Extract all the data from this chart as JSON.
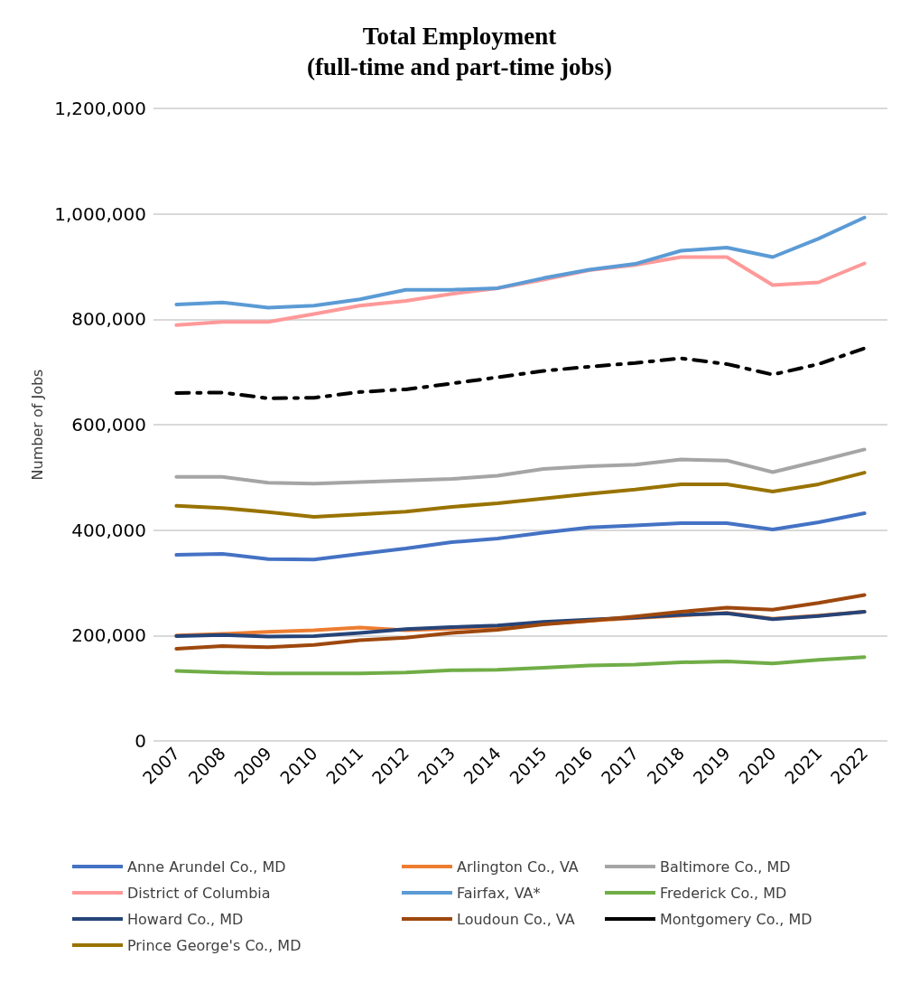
{
  "chart_data": {
    "type": "line",
    "title": "Total Employment\n(full-time and part-time jobs)",
    "ylabel": "Number of Jobs",
    "categories": [
      "2007",
      "2008",
      "2009",
      "2010",
      "2011",
      "2012",
      "2013",
      "2014",
      "2015",
      "2016",
      "2017",
      "2018",
      "2019",
      "2020",
      "2021",
      "2022"
    ],
    "ylim": [
      0,
      1200000
    ],
    "yticks": [
      {
        "value": 0,
        "label": "0"
      },
      {
        "value": 200000,
        "label": "200,000"
      },
      {
        "value": 400000,
        "label": "400,000"
      },
      {
        "value": 600000,
        "label": "600,000"
      },
      {
        "value": 800000,
        "label": "800,000"
      },
      {
        "value": 1000000,
        "label": "1,000,000"
      },
      {
        "value": 1200000,
        "label": "1,200,000"
      }
    ],
    "grid": "y",
    "legend": "bottom",
    "marker": "none",
    "series": [
      {
        "name": "Anne Arundel Co., MD",
        "color": "#4472c4",
        "values": [
          353000,
          355000,
          345000,
          344000,
          355000,
          365000,
          377000,
          384000,
          395000,
          405000,
          409000,
          413000,
          413000,
          401000,
          415000,
          432000
        ]
      },
      {
        "name": "Arlington Co., VA",
        "color": "#ed7d31",
        "values": [
          200000,
          203000,
          207000,
          210000,
          215000,
          210000,
          213000,
          217000,
          222000,
          228000,
          233000,
          238000,
          243000,
          232000,
          238000,
          245000
        ]
      },
      {
        "name": "Baltimore Co., MD",
        "color": "#a5a5a5",
        "values": [
          501000,
          501000,
          490000,
          488000,
          491000,
          494000,
          497000,
          503000,
          516000,
          521000,
          524000,
          534000,
          532000,
          510000,
          531000,
          553000
        ]
      },
      {
        "name": "District of Columbia",
        "color": "#ff9999",
        "values": [
          789000,
          795000,
          795000,
          810000,
          826000,
          835000,
          848000,
          859000,
          875000,
          893000,
          903000,
          918000,
          918000,
          865000,
          870000,
          906000
        ]
      },
      {
        "name": "Fairfax, VA*",
        "color": "#5b9bd5",
        "values": [
          828000,
          832000,
          822000,
          826000,
          838000,
          856000,
          856000,
          859000,
          878000,
          894000,
          905000,
          930000,
          936000,
          918000,
          953000,
          993000
        ]
      },
      {
        "name": "Frederick Co., MD",
        "color": "#70ad47",
        "values": [
          133000,
          130000,
          128000,
          128000,
          128000,
          130000,
          134000,
          135000,
          139000,
          143000,
          145000,
          149000,
          151000,
          147000,
          154000,
          159000
        ]
      },
      {
        "name": "Howard Co., MD",
        "color": "#264478",
        "values": [
          199000,
          201000,
          198000,
          199000,
          205000,
          212000,
          216000,
          219000,
          226000,
          230000,
          234000,
          239000,
          242000,
          231000,
          237000,
          245000
        ]
      },
      {
        "name": "Loudoun Co., VA",
        "color": "#9e480e",
        "values": [
          175000,
          180000,
          178000,
          182000,
          191000,
          196000,
          205000,
          211000,
          221000,
          228000,
          236000,
          245000,
          253000,
          249000,
          262000,
          277000
        ]
      },
      {
        "name": "Montgomery Co., MD",
        "color": "#000000",
        "line_style": "dashed",
        "values": [
          660000,
          661000,
          650000,
          651000,
          662000,
          667000,
          678000,
          690000,
          702000,
          710000,
          717000,
          726000,
          715000,
          695000,
          715000,
          745000
        ]
      },
      {
        "name": "Prince George's Co., MD",
        "color": "#997300",
        "values": [
          446000,
          442000,
          434000,
          425000,
          430000,
          435000,
          444000,
          451000,
          460000,
          469000,
          477000,
          487000,
          487000,
          473000,
          487000,
          509000
        ]
      }
    ]
  }
}
